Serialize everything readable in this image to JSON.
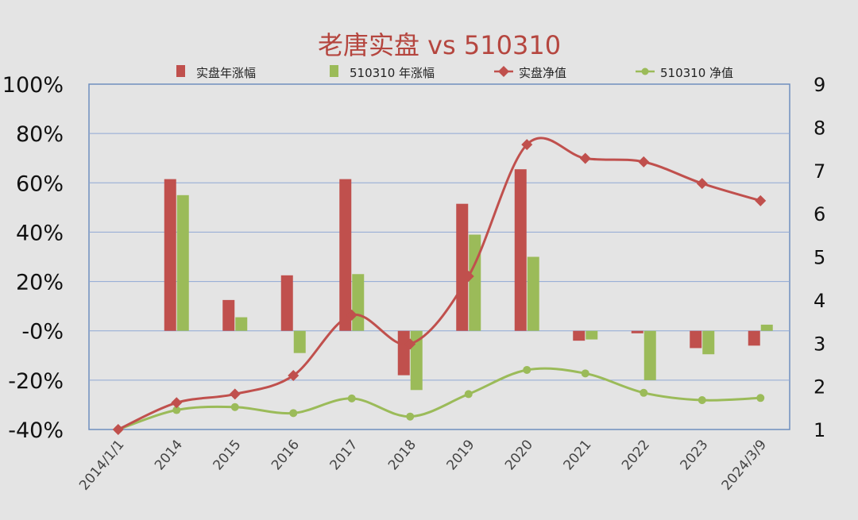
{
  "chart_data": {
    "type": "bar",
    "title": "老唐实盘 vs 510310",
    "categories": [
      "2014/1/1",
      "2014",
      "2015",
      "2016",
      "2017",
      "2018",
      "2019",
      "2020",
      "2021",
      "2022",
      "2023",
      "2024/3/9"
    ],
    "y_left": {
      "ticks": [
        "100%",
        "80%",
        "60%",
        "40%",
        "20%",
        "-0%",
        "-20%",
        "-40%"
      ],
      "range": [
        -40,
        100
      ]
    },
    "y_right": {
      "ticks": [
        "9",
        "8",
        "7",
        "6",
        "5",
        "4",
        "3",
        "2",
        "1"
      ],
      "range": [
        1,
        9
      ]
    },
    "grid": true,
    "legend_position": "top",
    "series": [
      {
        "name": "实盘年涨幅",
        "kind": "bar",
        "axis": "left",
        "color": "#c0504d",
        "values": [
          null,
          61.5,
          12.5,
          22.5,
          61.5,
          -18,
          51.5,
          65.5,
          -4,
          -1,
          -7,
          -6
        ]
      },
      {
        "name": "510310 年涨幅",
        "kind": "bar",
        "axis": "left",
        "color": "#9bbb59",
        "values": [
          null,
          55,
          5.5,
          -9,
          23,
          -24,
          39,
          30,
          -3.5,
          -20,
          -9.5,
          2.5
        ]
      },
      {
        "name": "实盘净值",
        "kind": "line",
        "axis": "right",
        "color": "#c0504d",
        "marker": "diamond",
        "values": [
          1.0,
          1.62,
          1.82,
          2.25,
          3.65,
          2.98,
          4.55,
          7.6,
          7.28,
          7.2,
          6.7,
          6.3
        ]
      },
      {
        "name": "510310 净值",
        "kind": "line",
        "axis": "right",
        "color": "#9bbb59",
        "marker": "circle",
        "values": [
          1.0,
          1.45,
          1.52,
          1.38,
          1.72,
          1.3,
          1.82,
          2.38,
          2.3,
          1.85,
          1.68,
          1.73
        ]
      }
    ]
  }
}
